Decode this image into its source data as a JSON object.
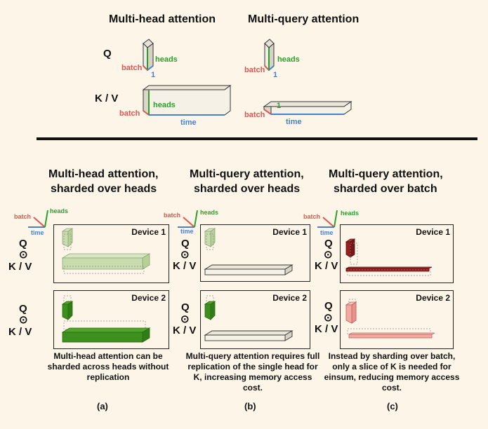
{
  "top": {
    "mha_title": "Multi-head attention",
    "mqa_title": "Multi-query attention",
    "q_label": "Q",
    "kv_label": "K / V",
    "batch": "batch",
    "heads": "heads",
    "time": "time",
    "one": "1"
  },
  "columns": [
    {
      "title_line1": "Multi-head attention,",
      "title_line2": "sharded over heads",
      "device1": "Device 1",
      "device2": "Device 2",
      "caption": "Multi-head attention can be sharded across heads without replication",
      "sublabel": "(a)"
    },
    {
      "title_line1": "Multi-query attention,",
      "title_line2": "sharded over heads",
      "device1": "Device 1",
      "device2": "Device 2",
      "caption": "Multi-query attention requires full replication of the single head for K, increasing memory access cost.",
      "sublabel": "(b)"
    },
    {
      "title_line1": "Multi-query attention,",
      "title_line2": "sharded over batch",
      "device1": "Device 1",
      "device2": "Device 2",
      "caption": "Instead by sharding over batch, only a slice of K is needed for einsum, reducing memory access cost.",
      "sublabel": "(c)"
    }
  ],
  "side_labels": {
    "q": "Q",
    "odot": "⊙",
    "kv": "K / V"
  },
  "colors": {
    "light_green": "#c9dcb0",
    "dark_green": "#3d8f1e",
    "dark_red": "#9a1c1c",
    "light_red": "#f2a9a0",
    "white_box": "#f7f2ea"
  }
}
